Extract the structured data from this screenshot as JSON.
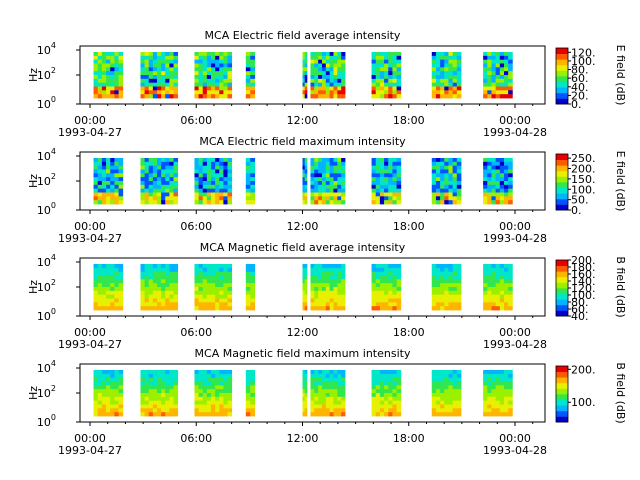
{
  "figure": {
    "background": "#ffffff"
  },
  "colormap": [
    "#0000c8",
    "#0055ff",
    "#00b4ff",
    "#00e6c8",
    "#32e650",
    "#9bf000",
    "#e6f000",
    "#ffb400",
    "#ff5a00",
    "#e60000"
  ],
  "chart_data": [
    {
      "type": "heatmap",
      "title": "MCA  Electric field average intensity",
      "ylabel": "Hz",
      "yscale": "log",
      "ytick_labels": [
        "10",
        "10",
        "10"
      ],
      "ytick_exponents": [
        "0",
        "2",
        "4"
      ],
      "xtick_labels": [
        "00:00",
        "06:00",
        "12:00",
        "18:00",
        "00:00"
      ],
      "x_start_date": "1993-04-27",
      "x_end_date": "1993-04-28",
      "colorbar": {
        "label": "E field (dB)",
        "vmin": 0,
        "vmax": 130,
        "ticks": [
          "0.",
          "20.",
          "40.",
          "60.",
          "80.",
          "100.",
          "120."
        ]
      },
      "coverage_hours": [
        [
          0.2,
          1.85
        ],
        [
          2.85,
          4.95
        ],
        [
          5.9,
          8.0
        ],
        [
          8.8,
          9.3
        ],
        [
          12.0,
          12.25
        ],
        [
          12.45,
          14.4
        ],
        [
          15.9,
          17.55
        ],
        [
          19.3,
          20.95
        ],
        [
          22.2,
          23.85
        ]
      ],
      "level": 0.42
    },
    {
      "type": "heatmap",
      "title": "MCA  Electric field maximum intensity",
      "ylabel": "Hz",
      "yscale": "log",
      "ytick_labels": [
        "10",
        "10",
        "10"
      ],
      "ytick_exponents": [
        "0",
        "2",
        "4"
      ],
      "xtick_labels": [
        "00:00",
        "06:00",
        "12:00",
        "18:00",
        "00:00"
      ],
      "x_start_date": "1993-04-27",
      "x_end_date": "1993-04-28",
      "colorbar": {
        "label": "E field (dB)",
        "vmin": 0,
        "vmax": 270,
        "ticks": [
          "0.",
          "50.",
          "100.",
          "150.",
          "200.",
          "250."
        ]
      },
      "coverage_hours": [
        [
          0.2,
          1.85
        ],
        [
          2.85,
          4.95
        ],
        [
          5.9,
          8.0
        ],
        [
          8.8,
          9.3
        ],
        [
          12.0,
          12.25
        ],
        [
          12.45,
          14.4
        ],
        [
          15.9,
          17.55
        ],
        [
          19.3,
          20.95
        ],
        [
          22.2,
          23.85
        ]
      ],
      "level": 0.3
    },
    {
      "type": "heatmap",
      "title": "MCA  Magnetic field average intensity",
      "ylabel": "Hz",
      "yscale": "log",
      "ytick_labels": [
        "10",
        "10",
        "10"
      ],
      "ytick_exponents": [
        "0",
        "2",
        "4"
      ],
      "xtick_labels": [
        "00:00",
        "06:00",
        "12:00",
        "18:00",
        "00:00"
      ],
      "x_start_date": "1993-04-27",
      "x_end_date": "1993-04-28",
      "colorbar": {
        "label": "B field (dB)",
        "vmin": 40,
        "vmax": 200,
        "ticks": [
          "40.",
          "60.",
          "80.",
          "100.",
          "120.",
          "140.",
          "160.",
          "180.",
          "200."
        ]
      },
      "coverage_hours": [
        [
          0.2,
          1.85
        ],
        [
          2.85,
          4.95
        ],
        [
          5.9,
          8.0
        ],
        [
          8.8,
          9.3
        ],
        [
          12.0,
          12.25
        ],
        [
          12.45,
          14.4
        ],
        [
          15.9,
          17.55
        ],
        [
          19.3,
          20.95
        ],
        [
          22.2,
          23.85
        ]
      ],
      "level": 0.45
    },
    {
      "type": "heatmap",
      "title": "MCA  Magnetic field maximum intensity",
      "ylabel": "Hz",
      "yscale": "log",
      "ytick_labels": [
        "10",
        "10",
        "10"
      ],
      "ytick_exponents": [
        "0",
        "2",
        "4"
      ],
      "xtick_labels": [
        "00:00",
        "06:00",
        "12:00",
        "18:00",
        "00:00"
      ],
      "x_start_date": "1993-04-27",
      "x_end_date": "1993-04-28",
      "colorbar": {
        "label": "B field (dB)",
        "vmin": 40,
        "vmax": 210,
        "ticks": [
          "100.",
          "200."
        ]
      },
      "coverage_hours": [
        [
          0.2,
          1.85
        ],
        [
          2.85,
          4.95
        ],
        [
          5.9,
          8.0
        ],
        [
          8.8,
          9.3
        ],
        [
          12.0,
          12.25
        ],
        [
          12.45,
          14.4
        ],
        [
          15.9,
          17.55
        ],
        [
          19.3,
          20.95
        ],
        [
          22.2,
          23.85
        ]
      ],
      "level": 0.45
    }
  ]
}
